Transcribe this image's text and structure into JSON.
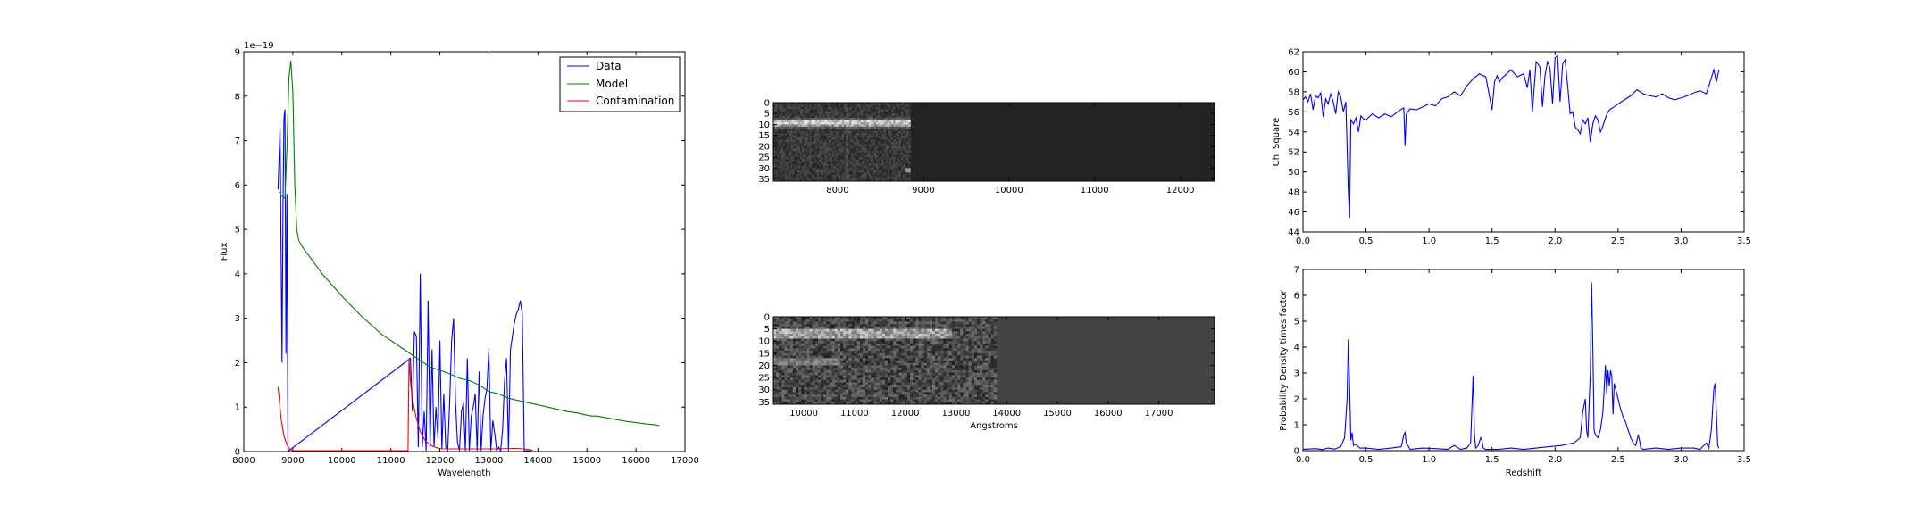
{
  "chart_data": [
    {
      "type": "line",
      "id": "spectrum",
      "xlabel": "Wavelength",
      "ylabel": "Flux",
      "offset_text": "1e−19",
      "xlim": [
        8000,
        17000
      ],
      "ylim": [
        0,
        9
      ],
      "xticks": [
        8000,
        9000,
        10000,
        11000,
        12000,
        13000,
        14000,
        15000,
        16000,
        17000
      ],
      "yticks": [
        0,
        1,
        2,
        3,
        4,
        5,
        6,
        7,
        8,
        9
      ],
      "legend": "top-right",
      "series": [
        {
          "name": "Data",
          "color": "#0000ff",
          "x": [
            8700,
            8740,
            8780,
            8800,
            8820,
            8840,
            8860,
            8880,
            8900,
            8920,
            11400,
            11440,
            11480,
            11520,
            11560,
            11600,
            11640,
            11680,
            11720,
            11760,
            11800,
            11840,
            11880,
            11920,
            11960,
            12000,
            12040,
            12080,
            12120,
            12160,
            12200,
            12240,
            12280,
            12320,
            12360,
            12400,
            12440,
            12480,
            12520,
            12560,
            12600,
            12640,
            12680,
            12720,
            12760,
            12800,
            12840,
            12880,
            12920,
            12960,
            13000,
            13040,
            13080,
            13120,
            13160,
            13200,
            13240,
            13280,
            13320,
            13360,
            13400,
            13440,
            13480,
            13520,
            13560,
            13600,
            13640,
            13680,
            13720,
            13760,
            13800,
            13840,
            13860
          ],
          "y": [
            5.9,
            7.3,
            2.0,
            5.5,
            7.5,
            7.7,
            2.2,
            5.8,
            0.05,
            0.02,
            2.1,
            0.9,
            2.7,
            2.6,
            0.1,
            4.0,
            0.1,
            0.9,
            0.02,
            3.4,
            0.1,
            2.3,
            0.1,
            1.0,
            0.3,
            2.5,
            0.05,
            1.3,
            0.1,
            0.02,
            1.1,
            2.5,
            3.0,
            1.1,
            0.2,
            0.02,
            0.9,
            1.1,
            0.02,
            2.1,
            0.02,
            0.8,
            1.0,
            1.3,
            0.02,
            1.8,
            0.02,
            0.8,
            1.2,
            1.4,
            2.3,
            0.02,
            0.7,
            0.4,
            0.02,
            0.1,
            0.02,
            0.5,
            1.6,
            2.1,
            0.02,
            2.3,
            2.6,
            2.9,
            3.1,
            3.2,
            3.4,
            3.1,
            0.02,
            0.02,
            0.02,
            0.02,
            0.02
          ]
        },
        {
          "name": "Model",
          "color": "#008000",
          "x": [
            8720,
            8780,
            8840,
            8880,
            8920,
            8960,
            9000,
            9040,
            9080,
            9120,
            9200,
            9400,
            9600,
            9800,
            10000,
            10200,
            10400,
            10600,
            10800,
            11000,
            11200,
            11400,
            11600,
            11800,
            12000,
            12200,
            12400,
            12600,
            12800,
            13000,
            13200,
            13400,
            13600,
            13800,
            14000,
            14200,
            14400,
            14600,
            14800,
            15000,
            15100,
            15200,
            15400,
            15600,
            15800,
            16000,
            16200,
            16400,
            16480
          ],
          "y": [
            5.85,
            5.75,
            5.7,
            6.8,
            8.4,
            8.8,
            8.1,
            6.0,
            5.0,
            4.75,
            4.6,
            4.3,
            4.0,
            3.75,
            3.5,
            3.27,
            3.05,
            2.85,
            2.65,
            2.5,
            2.35,
            2.2,
            2.05,
            1.9,
            1.83,
            1.75,
            1.65,
            1.6,
            1.5,
            1.35,
            1.3,
            1.2,
            1.15,
            1.1,
            1.05,
            1.0,
            0.95,
            0.9,
            0.87,
            0.82,
            0.8,
            0.8,
            0.76,
            0.72,
            0.68,
            0.65,
            0.62,
            0.6,
            0.58
          ]
        },
        {
          "name": "Contamination",
          "color": "#ff0000",
          "x": [
            8700,
            8760,
            8820,
            8880,
            8940,
            9000,
            9200,
            10000,
            11000,
            11350,
            11370,
            11390,
            11410,
            11440,
            11480,
            11520,
            11560,
            11600,
            11650,
            11700,
            11750,
            11800,
            11850,
            11900,
            11950,
            12000,
            12100,
            12200,
            12400,
            12600,
            12800,
            13000,
            13200,
            13400,
            13600,
            13800,
            13900
          ],
          "y": [
            1.45,
            0.75,
            0.35,
            0.15,
            0.05,
            0.02,
            0.02,
            0.02,
            0.02,
            0.02,
            2.1,
            1.7,
            1.45,
            1.2,
            0.95,
            0.75,
            0.6,
            0.45,
            0.35,
            0.25,
            0.2,
            0.15,
            0.12,
            0.1,
            0.08,
            0.07,
            0.06,
            0.06,
            0.06,
            0.06,
            0.06,
            0.06,
            0.06,
            0.07,
            0.07,
            0.05,
            0.03
          ]
        }
      ]
    },
    {
      "type": "heatmap",
      "id": "image-top",
      "xlim": [
        7250,
        12400
      ],
      "ylim": [
        36,
        0
      ],
      "xticks": [
        8000,
        9000,
        10000,
        11000,
        12000
      ],
      "yticks": [
        0,
        5,
        10,
        15,
        20,
        25,
        30,
        35
      ],
      "data_xmax": 8850
    },
    {
      "type": "heatmap",
      "id": "image-bottom",
      "xlabel": "Angstroms",
      "xlim": [
        9400,
        18100
      ],
      "ylim": [
        36,
        0
      ],
      "xticks": [
        10000,
        11000,
        12000,
        13000,
        14000,
        15000,
        16000,
        17000
      ],
      "yticks": [
        0,
        5,
        10,
        15,
        20,
        25,
        30,
        35
      ],
      "data_xmax": 13800
    },
    {
      "type": "line",
      "id": "chisq",
      "ylabel": "Chi Square",
      "xlim": [
        0.0,
        3.5
      ],
      "ylim": [
        44,
        62
      ],
      "xticks": [
        "0.0",
        "0.5",
        "1.0",
        "1.5",
        "2.0",
        "2.5",
        "3.0",
        "3.5"
      ],
      "yticks": [
        44,
        46,
        48,
        50,
        52,
        54,
        56,
        58,
        60,
        62
      ],
      "series": [
        {
          "color": "#0000ff",
          "x": [
            0.0,
            0.02,
            0.04,
            0.06,
            0.08,
            0.1,
            0.12,
            0.14,
            0.16,
            0.18,
            0.2,
            0.22,
            0.24,
            0.26,
            0.28,
            0.3,
            0.32,
            0.34,
            0.36,
            0.37,
            0.38,
            0.4,
            0.42,
            0.44,
            0.46,
            0.48,
            0.5,
            0.55,
            0.6,
            0.65,
            0.7,
            0.75,
            0.8,
            0.81,
            0.82,
            0.85,
            0.9,
            0.95,
            1.0,
            1.05,
            1.1,
            1.15,
            1.2,
            1.25,
            1.3,
            1.35,
            1.4,
            1.45,
            1.5,
            1.52,
            1.54,
            1.56,
            1.58,
            1.6,
            1.65,
            1.7,
            1.75,
            1.78,
            1.8,
            1.82,
            1.85,
            1.88,
            1.9,
            1.92,
            1.94,
            1.96,
            1.98,
            2.0,
            2.02,
            2.04,
            2.06,
            2.08,
            2.1,
            2.12,
            2.14,
            2.16,
            2.18,
            2.2,
            2.22,
            2.24,
            2.26,
            2.28,
            2.3,
            2.32,
            2.34,
            2.36,
            2.38,
            2.4,
            2.42,
            2.44,
            2.46,
            2.5,
            2.55,
            2.6,
            2.65,
            2.7,
            2.75,
            2.8,
            2.85,
            2.9,
            2.95,
            3.0,
            3.05,
            3.1,
            3.15,
            3.2,
            3.22,
            3.24,
            3.26,
            3.28,
            3.3
          ],
          "y": [
            57.2,
            57.5,
            57.0,
            57.8,
            56.2,
            57.6,
            57.4,
            57.9,
            55.5,
            57.3,
            56.8,
            57.8,
            57.0,
            55.8,
            58.0,
            57.5,
            56.0,
            57.0,
            48.0,
            45.4,
            55.2,
            54.8,
            55.4,
            54.0,
            55.6,
            55.3,
            55.2,
            55.8,
            55.4,
            55.8,
            55.5,
            56.0,
            56.4,
            52.6,
            55.8,
            56.3,
            56.2,
            56.5,
            56.8,
            56.6,
            57.3,
            57.5,
            58.0,
            57.6,
            58.6,
            59.3,
            59.8,
            59.5,
            56.2,
            59.0,
            59.6,
            59.0,
            59.4,
            59.6,
            60.2,
            59.5,
            59.8,
            58.4,
            60.2,
            56.0,
            61.0,
            60.5,
            56.5,
            59.6,
            61.0,
            60.4,
            56.8,
            61.4,
            61.6,
            57.0,
            60.8,
            61.2,
            58.6,
            55.8,
            56.0,
            54.5,
            54.2,
            53.8,
            55.2,
            54.8,
            55.4,
            53.0,
            54.8,
            55.6,
            55.2,
            54.0,
            54.6,
            55.4,
            56.0,
            56.3,
            56.4,
            56.8,
            57.2,
            57.6,
            58.2,
            57.8,
            57.6,
            57.5,
            57.8,
            57.4,
            57.2,
            57.4,
            57.6,
            57.9,
            58.1,
            57.8,
            58.6,
            59.4,
            60.2,
            59.0,
            60.2
          ]
        }
      ]
    },
    {
      "type": "line",
      "id": "pdf",
      "xlabel": "Redshift",
      "ylabel": "Probability Density times factor",
      "xlim": [
        0.0,
        3.5
      ],
      "ylim": [
        0,
        7
      ],
      "xticks": [
        "0.0",
        "0.5",
        "1.0",
        "1.5",
        "2.0",
        "2.5",
        "3.0",
        "3.5"
      ],
      "yticks": [
        0,
        1,
        2,
        3,
        4,
        5,
        6,
        7
      ],
      "series": [
        {
          "color": "#0000ff",
          "x": [
            0.0,
            0.1,
            0.15,
            0.2,
            0.25,
            0.3,
            0.33,
            0.35,
            0.36,
            0.37,
            0.38,
            0.39,
            0.4,
            0.42,
            0.45,
            0.5,
            0.6,
            0.7,
            0.78,
            0.8,
            0.81,
            0.82,
            0.85,
            0.95,
            1.05,
            1.15,
            1.2,
            1.25,
            1.3,
            1.33,
            1.35,
            1.36,
            1.37,
            1.39,
            1.41,
            1.42,
            1.43,
            1.45,
            1.55,
            1.65,
            1.75,
            1.85,
            1.95,
            2.05,
            2.15,
            2.2,
            2.22,
            2.24,
            2.25,
            2.26,
            2.28,
            2.29,
            2.3,
            2.31,
            2.32,
            2.34,
            2.36,
            2.38,
            2.4,
            2.41,
            2.42,
            2.43,
            2.44,
            2.45,
            2.46,
            2.47,
            2.48,
            2.5,
            2.52,
            2.54,
            2.56,
            2.58,
            2.6,
            2.62,
            2.64,
            2.66,
            2.67,
            2.68,
            2.7,
            2.8,
            2.9,
            3.0,
            3.1,
            3.15,
            3.18,
            3.2,
            3.22,
            3.24,
            3.26,
            3.27,
            3.28,
            3.29,
            3.3
          ],
          "y": [
            0.05,
            0.08,
            0.04,
            0.1,
            0.06,
            0.15,
            0.5,
            2.0,
            4.3,
            2.5,
            0.4,
            0.7,
            0.2,
            0.25,
            0.1,
            0.1,
            0.05,
            0.1,
            0.15,
            0.6,
            0.7,
            0.3,
            0.05,
            0.1,
            0.08,
            0.05,
            0.2,
            0.05,
            0.1,
            0.3,
            2.9,
            0.6,
            0.1,
            0.2,
            0.5,
            0.4,
            0.1,
            0.05,
            0.05,
            0.1,
            0.05,
            0.1,
            0.15,
            0.2,
            0.3,
            0.5,
            1.5,
            2.0,
            0.8,
            0.5,
            3.0,
            6.5,
            4.0,
            0.8,
            0.6,
            0.5,
            0.8,
            1.5,
            3.3,
            2.2,
            3.1,
            2.5,
            3.1,
            2.9,
            1.4,
            2.6,
            2.4,
            2.0,
            1.6,
            1.3,
            1.1,
            0.8,
            0.5,
            0.3,
            0.2,
            0.6,
            0.4,
            0.1,
            0.05,
            0.1,
            0.05,
            0.1,
            0.1,
            0.05,
            0.2,
            0.3,
            0.1,
            0.8,
            2.4,
            2.6,
            1.5,
            0.2,
            0.1
          ]
        }
      ]
    }
  ]
}
